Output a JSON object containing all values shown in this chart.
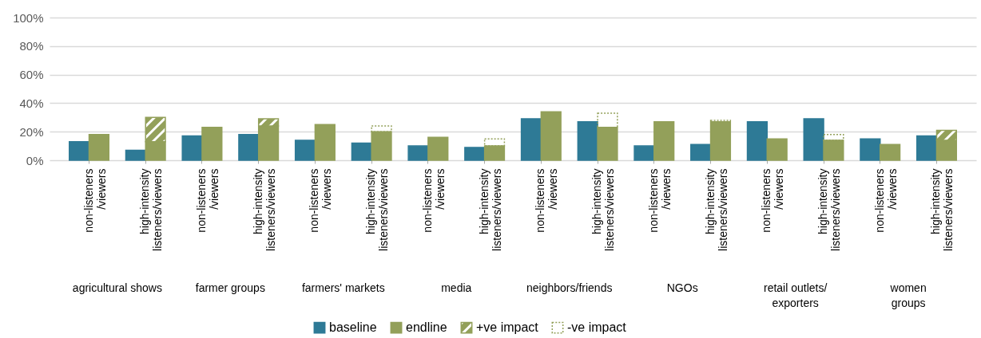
{
  "chart_data": {
    "type": "bar",
    "categories": [
      "non-listeners\n/viewers",
      "high-intensity\nlisteners/viewers",
      "non-listeners\n/viewers",
      "high-intensity\nlisteners/viewers",
      "non-listeners\n/viewers",
      "high-intensity\nlisteners/viewers",
      "non-listeners\n/viewers",
      "high-intensity\nlisteners/viewers",
      "non-listeners\n/viewers",
      "high-intensity\nlisteners/viewers",
      "non-listeners\n/viewers",
      "high-intensity\nlisteners/viewers",
      "non-listeners\n/viewers",
      "high-intensity\nlisteners/viewers",
      "non-listeners\n/viewers",
      "high-intensity\nlisteners/viewers"
    ],
    "series": [
      {
        "name": "baseline",
        "color": "#2e7a96",
        "values": [
          13,
          7,
          17,
          18,
          14,
          12,
          10,
          9,
          29,
          27,
          10,
          11,
          27,
          29,
          15,
          17
        ]
      },
      {
        "name": "endline",
        "color": "#93a05a",
        "values": [
          18,
          13,
          23,
          24,
          25,
          20,
          16,
          10,
          34,
          23,
          27,
          27,
          15,
          14,
          11,
          14
        ]
      },
      {
        "name": "+ve impact",
        "color": "#93a05a",
        "base": [
          null,
          13,
          null,
          24,
          null,
          null,
          null,
          null,
          null,
          null,
          null,
          null,
          null,
          null,
          null,
          14
        ],
        "values": [
          null,
          17,
          null,
          5,
          null,
          null,
          null,
          null,
          null,
          null,
          null,
          null,
          null,
          null,
          null,
          7
        ]
      },
      {
        "name": "-ve impact",
        "color": "#93a05a",
        "line_style": "dotted",
        "base": [
          null,
          null,
          null,
          null,
          null,
          20,
          null,
          10,
          null,
          23,
          null,
          27,
          null,
          14,
          null,
          null
        ],
        "values": [
          null,
          null,
          null,
          null,
          null,
          4,
          null,
          5,
          null,
          10,
          null,
          1,
          null,
          4,
          null,
          null
        ]
      }
    ],
    "ylim": [
      0,
      100
    ],
    "yticks": [
      {
        "value": 0,
        "label": "0%"
      },
      {
        "value": 20,
        "label": "20%"
      },
      {
        "value": 40,
        "label": "40%"
      },
      {
        "value": 60,
        "label": "60%"
      },
      {
        "value": 80,
        "label": "80%"
      },
      {
        "value": 100,
        "label": "100%"
      }
    ],
    "grid": "y",
    "legend": "bottom",
    "annotations": [
      "agricultural shows",
      "farmer groups",
      "farmers' markets",
      "media",
      "neighbors/friends",
      "NGOs",
      "retail outlets/\nexporters",
      "women\ngroups"
    ]
  }
}
